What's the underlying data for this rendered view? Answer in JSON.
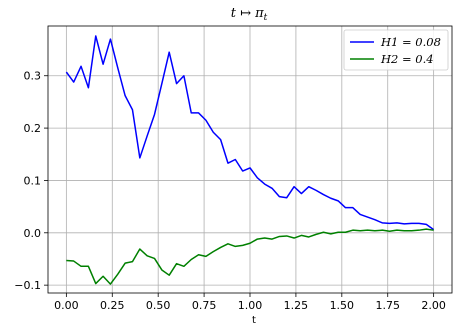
{
  "chart_data": {
    "type": "line",
    "title": "t ↦ π_t",
    "xlabel": "t",
    "ylabel": "",
    "xlim": [
      -0.1,
      2.1
    ],
    "ylim": [
      -0.115,
      0.395
    ],
    "xticks": [
      0.0,
      0.25,
      0.5,
      0.75,
      1.0,
      1.25,
      1.5,
      1.75,
      2.0
    ],
    "xtick_labels": [
      "0.00",
      "0.25",
      "0.50",
      "0.75",
      "1.00",
      "1.25",
      "1.50",
      "1.75",
      "2.00"
    ],
    "yticks": [
      -0.1,
      0.0,
      0.1,
      0.2,
      0.3
    ],
    "ytick_labels": [
      "−0.1",
      "0.0",
      "0.1",
      "0.2",
      "0.3"
    ],
    "grid": true,
    "legend_position": "top-right",
    "x": [
      0.0,
      0.04,
      0.08,
      0.12,
      0.16,
      0.2,
      0.24,
      0.28,
      0.32,
      0.36,
      0.4,
      0.44,
      0.48,
      0.52,
      0.56,
      0.6,
      0.64,
      0.68,
      0.72,
      0.76,
      0.8,
      0.84,
      0.88,
      0.92,
      0.96,
      1.0,
      1.04,
      1.08,
      1.12,
      1.16,
      1.2,
      1.24,
      1.28,
      1.32,
      1.36,
      1.4,
      1.44,
      1.48,
      1.52,
      1.56,
      1.6,
      1.64,
      1.68,
      1.72,
      1.76,
      1.8,
      1.84,
      1.88,
      1.92,
      1.96,
      2.0
    ],
    "series": [
      {
        "name": "H1 = 0.08",
        "color": "#0000ff",
        "values": [
          0.307,
          0.288,
          0.318,
          0.277,
          0.376,
          0.322,
          0.37,
          0.315,
          0.262,
          0.235,
          0.143,
          0.185,
          0.226,
          0.285,
          0.345,
          0.285,
          0.3,
          0.229,
          0.229,
          0.215,
          0.192,
          0.178,
          0.133,
          0.14,
          0.118,
          0.124,
          0.105,
          0.093,
          0.085,
          0.069,
          0.067,
          0.088,
          0.075,
          0.088,
          0.081,
          0.073,
          0.066,
          0.061,
          0.048,
          0.048,
          0.035,
          0.03,
          0.025,
          0.019,
          0.018,
          0.019,
          0.017,
          0.018,
          0.018,
          0.016,
          0.006
        ]
      },
      {
        "name": "H2 = 0.4",
        "color": "#008000",
        "values": [
          -0.053,
          -0.054,
          -0.064,
          -0.064,
          -0.097,
          -0.083,
          -0.098,
          -0.079,
          -0.058,
          -0.055,
          -0.031,
          -0.044,
          -0.049,
          -0.071,
          -0.081,
          -0.059,
          -0.064,
          -0.051,
          -0.042,
          -0.045,
          -0.036,
          -0.028,
          -0.021,
          -0.026,
          -0.024,
          -0.02,
          -0.012,
          -0.01,
          -0.012,
          -0.007,
          -0.006,
          -0.01,
          -0.005,
          -0.008,
          -0.003,
          0.001,
          -0.002,
          0.001,
          0.001,
          0.005,
          0.004,
          0.005,
          0.004,
          0.005,
          0.003,
          0.005,
          0.004,
          0.004,
          0.005,
          0.007,
          0.005
        ]
      }
    ]
  }
}
